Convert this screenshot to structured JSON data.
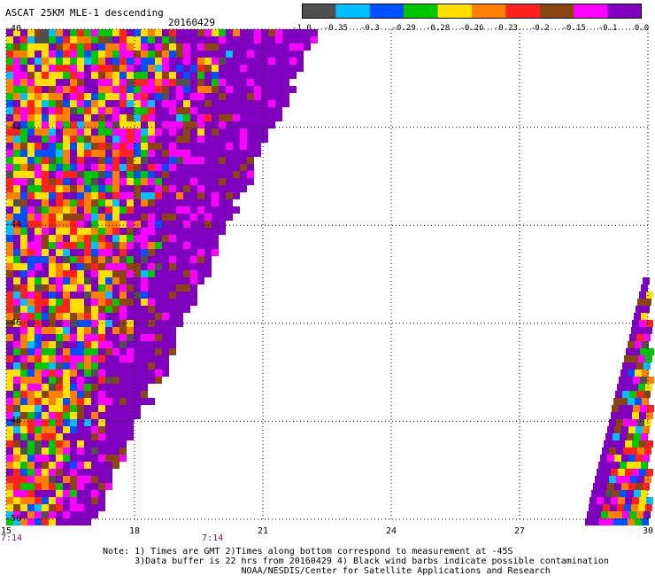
{
  "header": {
    "title": "ASCAT 25KM MLE-1 descending",
    "date": "20160429"
  },
  "colorbar": {
    "colors": [
      "#505050",
      "#00c0ff",
      "#0050ff",
      "#00c800",
      "#ffe000",
      "#ff8000",
      "#ff2020",
      "#8b4513",
      "#ff00ff",
      "#8000c0"
    ],
    "labels": [
      "-1.0",
      "-0.35",
      "-0.3",
      "-0.29",
      "-0.28",
      "-0.26",
      "-0.23",
      "-0.2",
      "-0.15",
      "-0.1",
      "0.0"
    ]
  },
  "axes": {
    "x_ticks": [
      "15",
      "18",
      "21",
      "24",
      "27",
      "30"
    ],
    "x_values": [
      15,
      18,
      21,
      24,
      27,
      30
    ],
    "y_ticks": [
      "-40",
      "-42",
      "-44",
      "-46",
      "-48",
      "-50"
    ],
    "y_values": [
      -40,
      -42,
      -44,
      -46,
      -48,
      -50
    ],
    "x_range": [
      15,
      30
    ],
    "y_range": [
      -40,
      -50
    ],
    "grid": true
  },
  "times": [
    {
      "label": "7:14",
      "lon": 15
    },
    {
      "label": "7:14",
      "lon": 19.7
    }
  ],
  "notes": {
    "line1": "Note: 1) Times are GMT 2)Times along bottom correspond to measurement at -45S",
    "line2": "      3)Data buffer is 22 hrs from 20160429 4) Black wind barbs indicate possible contamination",
    "line3": "                          NOAA/NESDIS/Center for Satellite Applications and Research"
  }
}
